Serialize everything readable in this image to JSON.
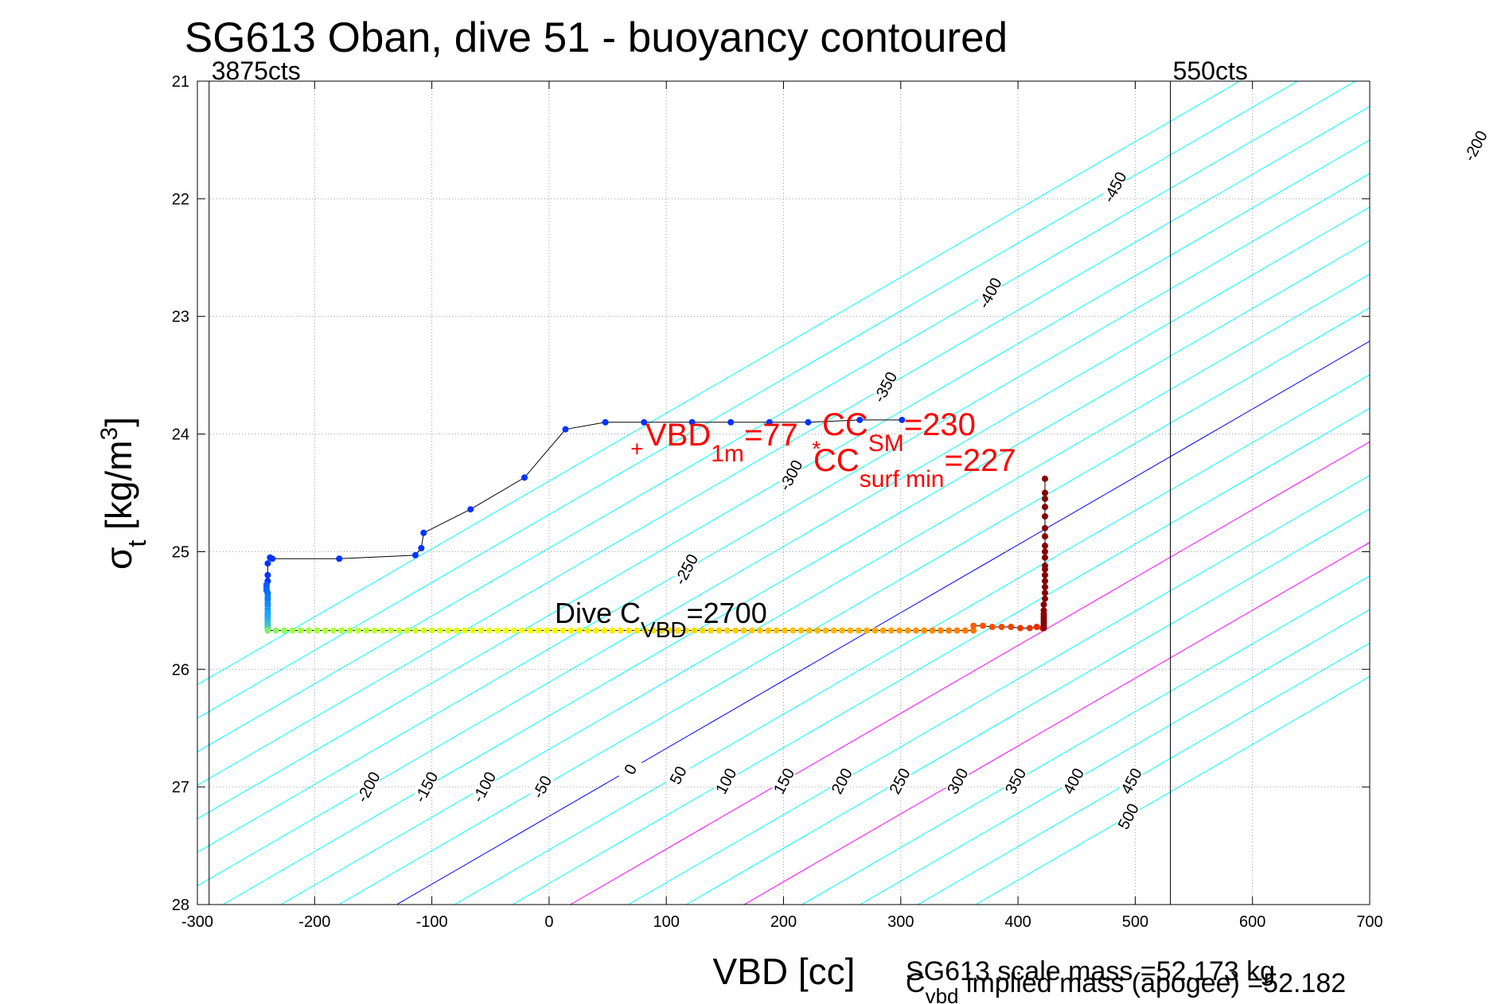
{
  "chart_data": {
    "type": "scatter",
    "title": "SG613 Oban, dive 51 - buoyancy contoured",
    "xlabel": "VBD [cc]",
    "ylabel": {
      "sym": "σ",
      "sub": "t",
      "unit_pre": "[kg/m",
      "sup": "3",
      "unit_post": "]"
    },
    "xlim": [
      -300,
      700
    ],
    "ylim": [
      21,
      28
    ],
    "y_reversed": true,
    "grid": true,
    "x_ticks": [
      -300,
      -200,
      -100,
      0,
      100,
      200,
      300,
      400,
      500,
      600,
      700
    ],
    "y_ticks": [
      21,
      22,
      23,
      24,
      25,
      26,
      27,
      28
    ],
    "vbd_limits": [
      {
        "x": -290,
        "label": "3875cts"
      },
      {
        "x": 530,
        "label": "550cts"
      }
    ],
    "contours": {
      "values": [
        -500,
        -450,
        -400,
        -350,
        -300,
        -250,
        -200,
        -150,
        -100,
        -50,
        0,
        50,
        100,
        150,
        200,
        250,
        300,
        350,
        400,
        450,
        500
      ],
      "slope_vbd_per_sigma": -173.3,
      "zero_vbd_at_sigma_28": -130,
      "spacing_vbd": 49.4,
      "default_color": "#00ffff",
      "zero_color": "#0000ff",
      "magenta_values": [
        150,
        300
      ],
      "magenta_color": "#ff00ff",
      "top_labels": [
        {
          "value": -450,
          "sigma": 21.9
        },
        {
          "value": -400,
          "sigma": 22.8
        },
        {
          "value": -350,
          "sigma": 23.6
        },
        {
          "value": -300,
          "sigma": 24.35
        },
        {
          "value": -250,
          "sigma": 25.15
        },
        {
          "value": -200,
          "sigma": 21.55
        },
        {
          "value": -150,
          "sigma": 21.55
        },
        {
          "value": -100,
          "sigma": 21.55
        },
        {
          "value": -50,
          "sigma": 21.55
        },
        {
          "value": 0,
          "sigma": 21.55
        },
        {
          "value": 50,
          "sigma": 21.55
        },
        {
          "value": 100,
          "sigma": 21.55
        },
        {
          "value": 150,
          "sigma": 21.55
        },
        {
          "value": 200,
          "sigma": 21.55
        },
        {
          "value": 250,
          "sigma": 21.55
        },
        {
          "value": 300,
          "sigma": 21.55
        },
        {
          "value": 350,
          "sigma": 21.55
        },
        {
          "value": 400,
          "sigma": 21.55
        },
        {
          "value": 450,
          "sigma": 21.55
        },
        {
          "value": 500,
          "sigma": 21.75
        }
      ],
      "bottom_labels": [
        {
          "value": -200,
          "sigma": 27.0
        },
        {
          "value": -150,
          "sigma": 27.0
        },
        {
          "value": -100,
          "sigma": 27.0
        },
        {
          "value": -50,
          "sigma": 27.0
        },
        {
          "value": 0,
          "sigma": 26.85
        },
        {
          "value": 50,
          "sigma": 26.9
        },
        {
          "value": 100,
          "sigma": 26.95
        },
        {
          "value": 150,
          "sigma": 26.95
        },
        {
          "value": 200,
          "sigma": 26.95
        },
        {
          "value": 250,
          "sigma": 26.95
        },
        {
          "value": 300,
          "sigma": 26.95
        },
        {
          "value": 350,
          "sigma": 26.95
        },
        {
          "value": 400,
          "sigma": 26.95
        },
        {
          "value": 450,
          "sigma": 26.95
        },
        {
          "value": 500,
          "sigma": 27.25
        }
      ]
    },
    "series": [
      {
        "marker": "dot-line",
        "color": "#0033ff",
        "x": [
          -240,
          -240,
          -240,
          -238,
          -236,
          -179,
          -114,
          -109,
          -107,
          -67,
          -21,
          14,
          48,
          81,
          122,
          155,
          188,
          221,
          265,
          301
        ],
        "y": [
          25.25,
          25.2,
          25.1,
          25.05,
          25.06,
          25.06,
          25.03,
          24.97,
          24.84,
          24.64,
          24.37,
          23.96,
          23.9,
          23.9,
          23.9,
          23.9,
          23.9,
          23.9,
          23.88,
          23.88
        ]
      },
      {
        "marker": "dot",
        "x": [
          -241,
          -241,
          -241,
          -241,
          -240,
          -240,
          -240,
          -240,
          -240,
          -240,
          -240,
          -240,
          -240,
          -240,
          -240,
          -240,
          -240,
          -240,
          -240,
          -240
        ],
        "y": [
          25.28,
          25.3,
          25.32,
          25.33,
          25.35,
          25.36,
          25.39,
          25.41,
          25.44,
          25.46,
          25.49,
          25.52,
          25.54,
          25.56,
          25.58,
          25.6,
          25.62,
          25.63,
          25.65,
          25.66
        ]
      },
      {
        "marker": "dot-line",
        "name": "bottom_leg",
        "x_start": -240,
        "x_end": 362,
        "x_step": 7,
        "sigma": 25.67
      },
      {
        "marker": "dot-line",
        "x": [
          362,
          370,
          378,
          386,
          394,
          402,
          410,
          416,
          421
        ],
        "y": [
          25.63,
          25.63,
          25.64,
          25.64,
          25.64,
          25.65,
          25.65,
          25.64,
          25.65
        ]
      },
      {
        "marker": "dot-line",
        "color": "#880000",
        "x": [
          422,
          422,
          422,
          422,
          422,
          422,
          422,
          422,
          422,
          423,
          423,
          423,
          423,
          423,
          423,
          423,
          423,
          423,
          423,
          423,
          423,
          423,
          423,
          423,
          423,
          423
        ],
        "y": [
          25.65,
          25.63,
          25.61,
          25.59,
          25.57,
          25.55,
          25.53,
          25.5,
          25.45,
          25.4,
          25.35,
          25.3,
          25.25,
          25.2,
          25.15,
          25.12,
          25.05,
          25.0,
          24.95,
          24.87,
          24.8,
          24.7,
          24.62,
          24.55,
          24.5,
          24.38
        ]
      }
    ],
    "markers": [
      {
        "symbol": "+",
        "x": 75,
        "y": 24.12,
        "color": "#ff0000"
      },
      {
        "symbol": "*",
        "x": 228,
        "y": 24.12,
        "color": "#ff0000"
      }
    ],
    "annotations": {
      "vbd_1m": {
        "main": "VBD",
        "sub": "1m",
        "rest": "=77",
        "color": "#ff0000"
      },
      "cc_sm": {
        "main": "CC",
        "sub": "SM",
        "rest": "=230",
        "color": "#ff0000"
      },
      "cc_surf": {
        "main": "CC",
        "sub": "surf min",
        "rest": "=227",
        "color": "#ff0000"
      },
      "dive_c": {
        "main": "Dive C",
        "sub": "VBD",
        "rest": "=2700",
        "color": "#000000"
      }
    },
    "footer": {
      "scale_mass": "SG613 scale mass =52.173 kg",
      "implied_mass": {
        "main": "C",
        "sub": "vbd",
        "rest": " implied mass (apogee) =52.182"
      }
    }
  }
}
